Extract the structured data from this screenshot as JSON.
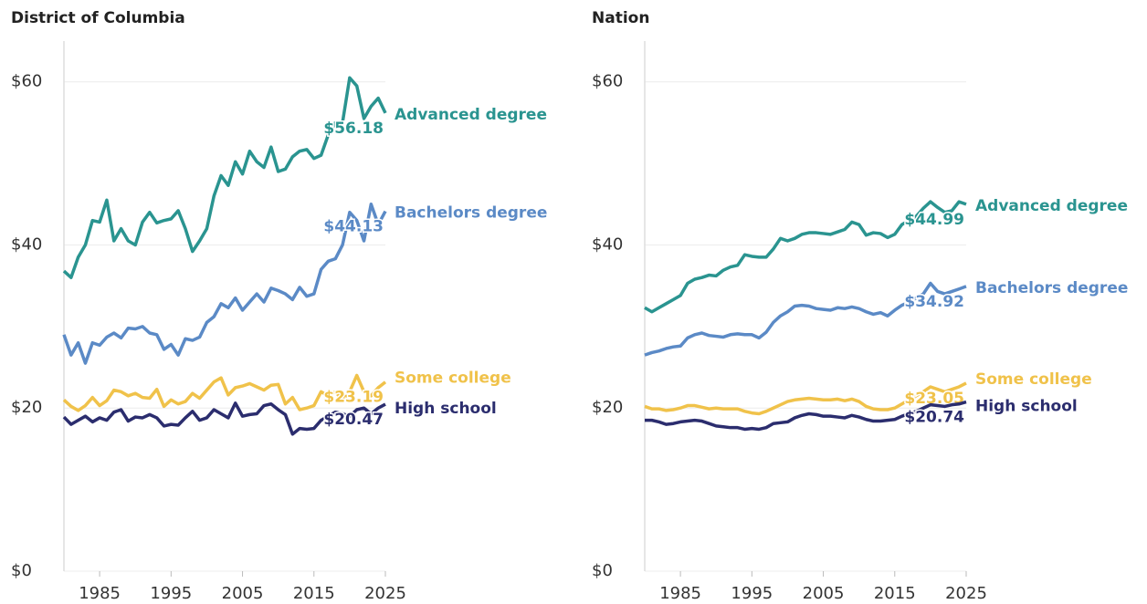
{
  "chart_data": [
    {
      "type": "line",
      "title": "District of Columbia",
      "x": [
        1980,
        1981,
        1982,
        1983,
        1984,
        1985,
        1986,
        1987,
        1988,
        1989,
        1990,
        1991,
        1992,
        1993,
        1994,
        1995,
        1996,
        1997,
        1998,
        1999,
        2000,
        2001,
        2002,
        2003,
        2004,
        2005,
        2006,
        2007,
        2008,
        2009,
        2010,
        2011,
        2012,
        2013,
        2014,
        2015,
        2016,
        2017,
        2018,
        2019,
        2020,
        2021,
        2022,
        2023,
        2024,
        2025
      ],
      "xlim": [
        1980,
        2025
      ],
      "xticks": [
        1985,
        1995,
        2005,
        2015,
        2025
      ],
      "ylim": [
        0,
        65
      ],
      "yticks": [
        {
          "value": 0,
          "label": "$0"
        },
        {
          "value": 20,
          "label": "$20"
        },
        {
          "value": 40,
          "label": "$40"
        },
        {
          "value": 60,
          "label": "$60"
        }
      ],
      "grid": true,
      "series": [
        {
          "name": "Advanced degree",
          "color": "#2a9490",
          "end_label": "$56.18",
          "values": [
            36.8,
            36,
            38.5,
            40,
            43,
            42.8,
            45.5,
            40.5,
            42,
            40.5,
            40,
            42.8,
            44,
            42.7,
            43,
            43.2,
            44.2,
            42,
            39.2,
            40.5,
            42,
            46,
            48.5,
            47.3,
            50.2,
            48.7,
            51.5,
            50.2,
            49.5,
            52,
            49,
            49.3,
            50.8,
            51.5,
            51.7,
            50.6,
            51,
            53.5,
            55,
            55,
            60.5,
            59.5,
            55.5,
            57,
            58,
            56.18
          ]
        },
        {
          "name": "Bachelors degree",
          "color": "#5b8ac6",
          "end_label": "$44.13",
          "values": [
            29,
            26.5,
            28,
            25.5,
            28,
            27.7,
            28.7,
            29.2,
            28.6,
            29.8,
            29.7,
            30,
            29.2,
            29,
            27.2,
            27.8,
            26.5,
            28.5,
            28.3,
            28.7,
            30.5,
            31.2,
            32.8,
            32.3,
            33.5,
            32,
            33,
            34,
            33,
            34.7,
            34.4,
            34,
            33.3,
            34.8,
            33.7,
            34,
            37,
            38,
            38.3,
            40,
            44,
            43,
            40.5,
            45,
            42.5,
            44.13
          ]
        },
        {
          "name": "Some college",
          "color": "#f0c24a",
          "end_label": "$23.19",
          "values": [
            21,
            20.2,
            19.7,
            20.3,
            21.3,
            20.3,
            20.9,
            22.2,
            22,
            21.5,
            21.8,
            21.3,
            21.2,
            22.3,
            20.2,
            21,
            20.5,
            20.8,
            21.8,
            21.2,
            22.2,
            23.2,
            23.7,
            21.6,
            22.5,
            22.7,
            23,
            22.6,
            22.2,
            22.8,
            22.9,
            20.5,
            21.3,
            19.8,
            20,
            20.3,
            22,
            21.5,
            22,
            21,
            22,
            24,
            22,
            21.5,
            22.5,
            23.19
          ]
        },
        {
          "name": "High school",
          "color": "#2b2d6e",
          "end_label": "$20.47",
          "values": [
            18.9,
            18,
            18.5,
            19,
            18.3,
            18.8,
            18.5,
            19.5,
            19.8,
            18.4,
            18.9,
            18.8,
            19.2,
            18.8,
            17.8,
            18,
            17.9,
            18.8,
            19.6,
            18.5,
            18.8,
            19.8,
            19.3,
            18.8,
            20.6,
            19,
            19.2,
            19.3,
            20.3,
            20.5,
            19.8,
            19.2,
            16.8,
            17.5,
            17.4,
            17.5,
            18.5,
            19,
            19.5,
            19.3,
            19,
            19.8,
            20,
            19.3,
            20,
            20.47
          ]
        }
      ]
    },
    {
      "type": "line",
      "title": "Nation",
      "x": [
        1980,
        1981,
        1982,
        1983,
        1984,
        1985,
        1986,
        1987,
        1988,
        1989,
        1990,
        1991,
        1992,
        1993,
        1994,
        1995,
        1996,
        1997,
        1998,
        1999,
        2000,
        2001,
        2002,
        2003,
        2004,
        2005,
        2006,
        2007,
        2008,
        2009,
        2010,
        2011,
        2012,
        2013,
        2014,
        2015,
        2016,
        2017,
        2018,
        2019,
        2020,
        2021,
        2022,
        2023,
        2024,
        2025
      ],
      "xlim": [
        1980,
        2025
      ],
      "xticks": [
        1985,
        1995,
        2005,
        2015,
        2025
      ],
      "ylim": [
        0,
        65
      ],
      "yticks": [
        {
          "value": 0,
          "label": "$0"
        },
        {
          "value": 20,
          "label": "$20"
        },
        {
          "value": 40,
          "label": "$40"
        },
        {
          "value": 60,
          "label": "$60"
        }
      ],
      "grid": true,
      "series": [
        {
          "name": "Advanced degree",
          "color": "#2a9490",
          "end_label": "$44.99",
          "values": [
            32.3,
            31.8,
            32.3,
            32.8,
            33.3,
            33.8,
            35.3,
            35.8,
            36,
            36.3,
            36.2,
            36.9,
            37.3,
            37.5,
            38.8,
            38.6,
            38.5,
            38.5,
            39.5,
            40.8,
            40.5,
            40.8,
            41.3,
            41.5,
            41.5,
            41.4,
            41.3,
            41.6,
            41.9,
            42.8,
            42.5,
            41.2,
            41.5,
            41.4,
            40.9,
            41.3,
            42.5,
            43,
            43.5,
            44.5,
            45.3,
            44.6,
            44,
            44.2,
            45.3,
            44.99
          ]
        },
        {
          "name": "Bachelors degree",
          "color": "#5b8ac6",
          "end_label": "$34.92",
          "values": [
            26.5,
            26.8,
            27,
            27.3,
            27.5,
            27.6,
            28.6,
            29,
            29.2,
            28.9,
            28.8,
            28.7,
            29,
            29.1,
            29,
            29,
            28.6,
            29.3,
            30.5,
            31.3,
            31.8,
            32.5,
            32.6,
            32.5,
            32.2,
            32.1,
            32,
            32.3,
            32.2,
            32.4,
            32.2,
            31.8,
            31.5,
            31.7,
            31.3,
            32,
            32.6,
            33,
            33.5,
            34,
            35.3,
            34.3,
            34,
            34.3,
            34.6,
            34.92
          ]
        },
        {
          "name": "Some college",
          "color": "#f0c24a",
          "end_label": "$23.05",
          "values": [
            20.2,
            19.9,
            19.9,
            19.7,
            19.8,
            20,
            20.3,
            20.3,
            20.1,
            19.9,
            20,
            19.9,
            19.9,
            19.9,
            19.6,
            19.4,
            19.3,
            19.6,
            20,
            20.4,
            20.8,
            21,
            21.1,
            21.2,
            21.1,
            21,
            21,
            21.1,
            20.9,
            21.1,
            20.8,
            20.2,
            19.9,
            19.8,
            19.8,
            20,
            20.5,
            21,
            21.5,
            22,
            22.6,
            22.3,
            22,
            22.3,
            22.6,
            23.05
          ]
        },
        {
          "name": "High school",
          "color": "#2b2d6e",
          "end_label": "$20.74",
          "values": [
            18.5,
            18.5,
            18.3,
            18,
            18.1,
            18.3,
            18.4,
            18.5,
            18.4,
            18.1,
            17.8,
            17.7,
            17.6,
            17.6,
            17.4,
            17.5,
            17.4,
            17.6,
            18.1,
            18.2,
            18.3,
            18.8,
            19.1,
            19.3,
            19.2,
            19,
            19,
            18.9,
            18.8,
            19.1,
            18.9,
            18.6,
            18.4,
            18.4,
            18.5,
            18.6,
            19,
            19.3,
            19.6,
            20,
            20.4,
            20.3,
            20.2,
            20.4,
            20.5,
            20.74
          ]
        }
      ]
    }
  ]
}
